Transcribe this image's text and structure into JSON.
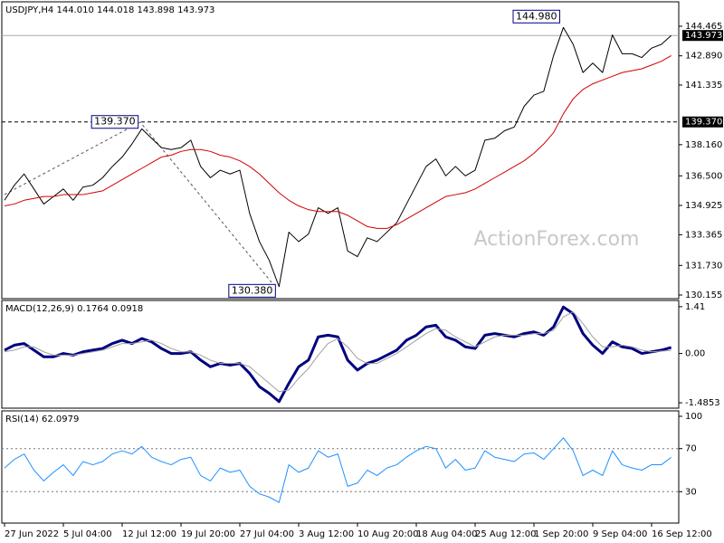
{
  "chart_data": [
    {
      "type": "line",
      "title": "USDJPY,H4  144.010 144.018 143.898 143.973",
      "ylim": [
        130.01,
        145.38
      ],
      "yticks": [
        144.465,
        {
          "value": 142.89,
          "label": "142.890"
        },
        141.335,
        {
          "value": 138.16,
          "label": "138.160"
        },
        {
          "value": 136.5,
          "label": "136.500"
        },
        134.925,
        133.365,
        {
          "value": 131.73,
          "label": "131.730"
        },
        130.155
      ],
      "series": [
        {
          "color": "#000000",
          "values": [
            135.2,
            136.0,
            136.6,
            135.8,
            135.0,
            135.4,
            135.8,
            135.2,
            135.9,
            136.0,
            136.4,
            137.0,
            137.5,
            138.2,
            139.0,
            138.5,
            138.0,
            137.9,
            138.0,
            138.4,
            137.0,
            136.4,
            136.8,
            136.6,
            136.8,
            134.5,
            133.0,
            132.0,
            130.6,
            133.5,
            133.0,
            133.4,
            134.8,
            134.5,
            134.8,
            132.5,
            132.2,
            133.2,
            133.0,
            133.5,
            134.0,
            135.0,
            136.0,
            137.0,
            137.4,
            136.5,
            137.0,
            136.5,
            136.8,
            138.4,
            138.5,
            138.9,
            139.1,
            140.2,
            140.8,
            141.0,
            142.9,
            144.4,
            143.5,
            142.0,
            142.5,
            142.0,
            144.0,
            143.0,
            143.0,
            142.8,
            143.3,
            143.5,
            143.97
          ]
        },
        {
          "color": "#d00000",
          "values": [
            134.9,
            135.0,
            135.2,
            135.3,
            135.4,
            135.4,
            135.5,
            135.5,
            135.5,
            135.6,
            135.7,
            136.0,
            136.3,
            136.6,
            136.9,
            137.2,
            137.5,
            137.6,
            137.8,
            137.9,
            137.9,
            137.8,
            137.6,
            137.5,
            137.3,
            137.0,
            136.6,
            136.1,
            135.6,
            135.2,
            134.9,
            134.7,
            134.6,
            134.6,
            134.6,
            134.4,
            134.1,
            133.8,
            133.7,
            133.7,
            133.9,
            134.2,
            134.5,
            134.8,
            135.1,
            135.4,
            135.5,
            135.6,
            135.8,
            136.1,
            136.4,
            136.7,
            137.0,
            137.3,
            137.7,
            138.2,
            138.8,
            139.8,
            140.6,
            141.1,
            141.4,
            141.6,
            141.8,
            142.0,
            142.1,
            142.2,
            142.4,
            142.6,
            142.9
          ]
        }
      ],
      "hlines": [
        {
          "value": 143.973,
          "label": "143.973",
          "style": "solid"
        },
        {
          "value": 139.37,
          "label": "139.370",
          "style": "dashed"
        }
      ],
      "annotations": [
        {
          "index": 57,
          "value": 144.98,
          "label": "144.980"
        },
        {
          "index": 14,
          "value": 139.37,
          "label": "139.370"
        },
        {
          "index": 28,
          "value": 130.38,
          "label": "130.380"
        }
      ],
      "watermark": "ActionForex.com"
    },
    {
      "type": "line",
      "title": "MACD(12,26,9) 0.1764 0.0918",
      "ylim": [
        -1.62,
        1.57
      ],
      "yticks": [
        1.41,
        {
          "value": 0,
          "label": "0.00"
        },
        -1.4853
      ],
      "series": [
        {
          "color": "#000080",
          "width": 3,
          "values": [
            0.1,
            0.25,
            0.3,
            0.1,
            -0.1,
            -0.1,
            0.0,
            -0.05,
            0.05,
            0.1,
            0.15,
            0.3,
            0.4,
            0.3,
            0.45,
            0.35,
            0.15,
            0.0,
            0.0,
            0.05,
            -0.2,
            -0.4,
            -0.3,
            -0.35,
            -0.3,
            -0.6,
            -1.0,
            -1.2,
            -1.45,
            -0.9,
            -0.4,
            -0.2,
            0.5,
            0.55,
            0.5,
            -0.2,
            -0.5,
            -0.3,
            -0.2,
            -0.05,
            0.1,
            0.4,
            0.55,
            0.8,
            0.85,
            0.5,
            0.4,
            0.2,
            0.15,
            0.55,
            0.6,
            0.55,
            0.5,
            0.6,
            0.65,
            0.55,
            0.8,
            1.4,
            1.2,
            0.6,
            0.25,
            0.0,
            0.35,
            0.2,
            0.15,
            0.0,
            0.05,
            0.1,
            0.18
          ]
        },
        {
          "color": "#a0a0a0",
          "width": 1,
          "values": [
            0.05,
            0.1,
            0.2,
            0.2,
            0.05,
            -0.05,
            -0.05,
            -0.05,
            0.0,
            0.05,
            0.1,
            0.2,
            0.3,
            0.3,
            0.35,
            0.4,
            0.3,
            0.15,
            0.05,
            0.05,
            -0.05,
            -0.2,
            -0.3,
            -0.3,
            -0.3,
            -0.4,
            -0.65,
            -0.9,
            -1.15,
            -1.1,
            -0.75,
            -0.45,
            -0.05,
            0.3,
            0.45,
            0.2,
            -0.15,
            -0.3,
            -0.3,
            -0.15,
            0.0,
            0.2,
            0.4,
            0.6,
            0.75,
            0.7,
            0.5,
            0.35,
            0.2,
            0.35,
            0.5,
            0.55,
            0.55,
            0.55,
            0.6,
            0.6,
            0.7,
            1.1,
            1.25,
            0.9,
            0.5,
            0.2,
            0.2,
            0.25,
            0.2,
            0.1,
            0.05,
            0.07,
            0.09
          ]
        }
      ]
    },
    {
      "type": "line",
      "title": "RSI(14) 62.0979",
      "ylim": [
        0,
        100
      ],
      "yticks": [
        100,
        70,
        30
      ],
      "grid": true,
      "series": [
        {
          "color": "#1e90ff",
          "width": 1,
          "values": [
            52,
            60,
            65,
            50,
            40,
            48,
            55,
            45,
            58,
            55,
            58,
            65,
            68,
            65,
            72,
            62,
            58,
            55,
            60,
            62,
            45,
            40,
            52,
            48,
            50,
            35,
            28,
            25,
            20,
            55,
            48,
            52,
            68,
            62,
            65,
            35,
            38,
            50,
            45,
            52,
            55,
            62,
            68,
            72,
            70,
            52,
            60,
            50,
            52,
            68,
            62,
            60,
            58,
            65,
            66,
            60,
            70,
            80,
            68,
            45,
            50,
            45,
            68,
            55,
            52,
            50,
            55,
            55,
            62
          ]
        }
      ],
      "categories": [
        "27 Jun 2022",
        null,
        null,
        null,
        null,
        null,
        "5 Jul 04:00",
        null,
        null,
        null,
        null,
        null,
        "12 Jul 12:00",
        null,
        null,
        null,
        null,
        null,
        "19 Jul 20:00",
        null,
        null,
        null,
        null,
        null,
        "27 Jul 04:00",
        null,
        null,
        null,
        null,
        null,
        "3 Aug 12:00",
        null,
        null,
        null,
        null,
        null,
        "10 Aug 20:00",
        null,
        null,
        null,
        null,
        null,
        "18 Aug 04:00",
        null,
        null,
        null,
        null,
        null,
        "25 Aug 12:00",
        null,
        null,
        null,
        null,
        null,
        "1 Sep 20:00",
        null,
        null,
        null,
        null,
        null,
        "9 Sep 04:00",
        null,
        null,
        null,
        null,
        null,
        "16 Sep 12:00",
        null,
        null
      ]
    }
  ]
}
